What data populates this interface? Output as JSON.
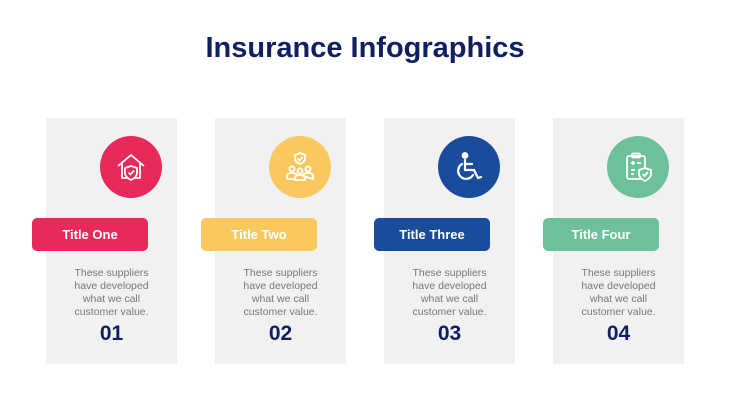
{
  "title": "Insurance Infographics",
  "items": [
    {
      "title": "Title One",
      "desc": "These suppliers have developed what we call customer value.",
      "num": "01",
      "color": "#E8295A",
      "icon": "house-shield-icon"
    },
    {
      "title": "Title Two",
      "desc": "These suppliers have developed what we call customer value.",
      "num": "02",
      "color": "#F9C95F",
      "icon": "family-shield-icon"
    },
    {
      "title": "Title Three",
      "desc": "These suppliers have developed what we call customer value.",
      "num": "03",
      "color": "#1A4C9C",
      "icon": "wheelchair-icon"
    },
    {
      "title": "Title Four",
      "desc": "These suppliers have developed what we call customer value.",
      "num": "04",
      "color": "#6CC09A",
      "icon": "clipboard-shield-icon"
    }
  ]
}
